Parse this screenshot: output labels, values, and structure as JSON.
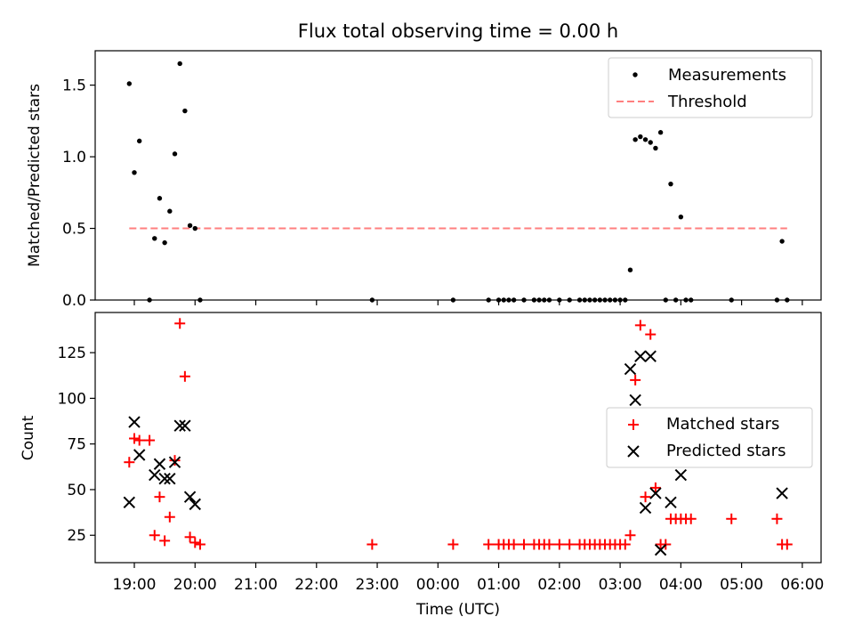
{
  "chart_data": [
    {
      "type": "scatter",
      "title": "Flux total observing time = 0.00 h",
      "xlabel": "",
      "ylabel": "Matched/Predicted stars",
      "ylim": [
        0,
        1.74
      ],
      "yticks": [
        "0.0",
        "0.5",
        "1.0",
        "1.5"
      ],
      "legend_position": "top-right",
      "series": [
        {
          "name": "Measurements",
          "marker": "dot",
          "color": "#000000",
          "points": [
            [
              "18:55",
              1.51
            ],
            [
              "19:00",
              0.89
            ],
            [
              "19:05",
              1.11
            ],
            [
              "19:15",
              0.0
            ],
            [
              "19:20",
              0.43
            ],
            [
              "19:25",
              0.71
            ],
            [
              "19:30",
              0.4
            ],
            [
              "19:35",
              0.62
            ],
            [
              "19:40",
              1.02
            ],
            [
              "19:45",
              1.65
            ],
            [
              "19:50",
              1.32
            ],
            [
              "19:55",
              0.52
            ],
            [
              "20:00",
              0.5
            ],
            [
              "20:05",
              0.0
            ],
            [
              "22:55",
              0.0
            ],
            [
              "00:15",
              0.0
            ],
            [
              "00:50",
              0.0
            ],
            [
              "01:00",
              0.0
            ],
            [
              "01:05",
              0.0
            ],
            [
              "01:10",
              0.0
            ],
            [
              "01:15",
              0.0
            ],
            [
              "01:25",
              0.0
            ],
            [
              "01:35",
              0.0
            ],
            [
              "01:40",
              0.0
            ],
            [
              "01:45",
              0.0
            ],
            [
              "01:50",
              0.0
            ],
            [
              "02:00",
              0.0
            ],
            [
              "02:10",
              0.0
            ],
            [
              "02:20",
              0.0
            ],
            [
              "02:25",
              0.0
            ],
            [
              "02:30",
              0.0
            ],
            [
              "02:35",
              0.0
            ],
            [
              "02:40",
              0.0
            ],
            [
              "02:45",
              0.0
            ],
            [
              "02:50",
              0.0
            ],
            [
              "02:55",
              0.0
            ],
            [
              "03:00",
              0.0
            ],
            [
              "03:05",
              0.0
            ],
            [
              "03:10",
              0.21
            ],
            [
              "03:15",
              1.12
            ],
            [
              "03:20",
              1.14
            ],
            [
              "03:25",
              1.12
            ],
            [
              "03:30",
              1.1
            ],
            [
              "03:35",
              1.06
            ],
            [
              "03:40",
              1.17
            ],
            [
              "03:45",
              0.0
            ],
            [
              "03:50",
              0.81
            ],
            [
              "03:55",
              0.0
            ],
            [
              "04:00",
              0.58
            ],
            [
              "04:05",
              0.0
            ],
            [
              "04:10",
              0.0
            ],
            [
              "04:50",
              0.0
            ],
            [
              "05:35",
              0.0
            ],
            [
              "05:40",
              0.41
            ],
            [
              "05:45",
              0.0
            ]
          ]
        },
        {
          "name": "Threshold",
          "marker": "dashed-line",
          "color": "#ff7f7f",
          "points": [
            [
              "18:55",
              0.5
            ],
            [
              "05:45",
              0.5
            ]
          ]
        }
      ]
    },
    {
      "type": "scatter",
      "title": "",
      "xlabel": "Time (UTC)",
      "ylabel": "Count",
      "ylim": [
        10,
        147
      ],
      "yticks": [
        "25",
        "50",
        "75",
        "100",
        "125"
      ],
      "xticks": [
        "19:00",
        "20:00",
        "21:00",
        "22:00",
        "23:00",
        "00:00",
        "01:00",
        "02:00",
        "03:00",
        "04:00",
        "05:00",
        "06:00"
      ],
      "legend_position": "center-right",
      "series": [
        {
          "name": "Matched stars",
          "marker": "plus",
          "color": "#ff0000",
          "points": [
            [
              "18:55",
              65
            ],
            [
              "19:00",
              78
            ],
            [
              "19:05",
              77
            ],
            [
              "19:15",
              77
            ],
            [
              "19:20",
              25
            ],
            [
              "19:25",
              46
            ],
            [
              "19:30",
              22
            ],
            [
              "19:35",
              35
            ],
            [
              "19:40",
              66
            ],
            [
              "19:45",
              141
            ],
            [
              "19:50",
              112
            ],
            [
              "19:55",
              24
            ],
            [
              "20:00",
              21
            ],
            [
              "20:05",
              20
            ],
            [
              "22:55",
              20
            ],
            [
              "00:15",
              20
            ],
            [
              "00:50",
              20
            ],
            [
              "01:00",
              20
            ],
            [
              "01:05",
              20
            ],
            [
              "01:10",
              20
            ],
            [
              "01:15",
              20
            ],
            [
              "01:25",
              20
            ],
            [
              "01:35",
              20
            ],
            [
              "01:40",
              20
            ],
            [
              "01:45",
              20
            ],
            [
              "01:50",
              20
            ],
            [
              "02:00",
              20
            ],
            [
              "02:10",
              20
            ],
            [
              "02:20",
              20
            ],
            [
              "02:25",
              20
            ],
            [
              "02:30",
              20
            ],
            [
              "02:35",
              20
            ],
            [
              "02:40",
              20
            ],
            [
              "02:45",
              20
            ],
            [
              "02:50",
              20
            ],
            [
              "02:55",
              20
            ],
            [
              "03:00",
              20
            ],
            [
              "03:05",
              20
            ],
            [
              "03:10",
              25
            ],
            [
              "03:15",
              110
            ],
            [
              "03:20",
              140
            ],
            [
              "03:25",
              46
            ],
            [
              "03:30",
              135
            ],
            [
              "03:35",
              51
            ],
            [
              "03:40",
              20
            ],
            [
              "03:45",
              20
            ],
            [
              "03:50",
              34
            ],
            [
              "03:55",
              34
            ],
            [
              "04:00",
              34
            ],
            [
              "04:05",
              34
            ],
            [
              "04:10",
              34
            ],
            [
              "04:50",
              34
            ],
            [
              "05:35",
              34
            ],
            [
              "05:40",
              20
            ],
            [
              "05:45",
              20
            ]
          ]
        },
        {
          "name": "Predicted stars",
          "marker": "x",
          "color": "#000000",
          "points": [
            [
              "18:55",
              43
            ],
            [
              "19:00",
              87
            ],
            [
              "19:05",
              69
            ],
            [
              "19:20",
              58
            ],
            [
              "19:25",
              64
            ],
            [
              "19:30",
              56
            ],
            [
              "19:35",
              56
            ],
            [
              "19:40",
              65
            ],
            [
              "19:45",
              85
            ],
            [
              "19:50",
              85
            ],
            [
              "19:55",
              46
            ],
            [
              "20:00",
              42
            ],
            [
              "03:10",
              116
            ],
            [
              "03:15",
              99
            ],
            [
              "03:20",
              123
            ],
            [
              "03:25",
              40
            ],
            [
              "03:30",
              123
            ],
            [
              "03:35",
              48
            ],
            [
              "03:40",
              17
            ],
            [
              "03:50",
              43
            ],
            [
              "04:00",
              58
            ],
            [
              "05:40",
              48
            ]
          ]
        }
      ]
    }
  ]
}
